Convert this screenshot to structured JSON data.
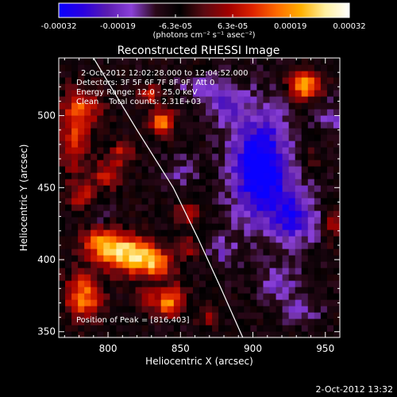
{
  "chart_data": {
    "type": "heatmap",
    "title": "Reconstructed RHESSI Image",
    "xlabel": "Heliocentric X (arcsec)",
    "ylabel": "Heliocentric Y (arcsec)",
    "xlim": [
      766,
      960
    ],
    "ylim": [
      346,
      540
    ],
    "xticks": [
      800,
      850,
      900,
      950
    ],
    "yticks": [
      350,
      400,
      450,
      500
    ],
    "colorbar": {
      "label": "(photons cm⁻² s⁻¹ asec⁻²)",
      "range": [
        -0.00032,
        0.00032
      ],
      "tick_labels": [
        "-0.00032",
        "-0.00019",
        "-6.3e-05",
        "6.3e-05",
        "0.00019",
        "0.00032"
      ],
      "colors": [
        "#0a00ff",
        "#2a00e0",
        "#5a1cb0",
        "#8a40d8",
        "#2a0818",
        "#000000",
        "#5a0a12",
        "#a00000",
        "#dd2200",
        "#ff6a00",
        "#ffb000",
        "#fff0a0",
        "#ffffff"
      ]
    },
    "info_lines": [
      "2-Oct-2012 12:02:28.000 to 12:04:52.000",
      "Detectors: 3F 5F 6F 7F 8F 9F, Att 0",
      "Energy Range: 12.0 - 25.0 keV",
      "Clean    Total counts: 2.31E+03"
    ],
    "peak_text": "Position of Peak = [816,403]",
    "peak": [
      816,
      403
    ],
    "limb_curve": [
      [
        790,
        540
      ],
      [
        820,
        490
      ],
      [
        845,
        450
      ],
      [
        862,
        415
      ],
      [
        878,
        380
      ],
      [
        893,
        346
      ]
    ],
    "sources": [
      {
        "x": 796,
        "y": 412,
        "sx": 10,
        "sy": 9,
        "amp": 0.00022
      },
      {
        "x": 815,
        "y": 404,
        "sx": 12,
        "sy": 9,
        "amp": 0.0003
      },
      {
        "x": 833,
        "y": 397,
        "sx": 9,
        "sy": 7,
        "amp": 0.00021
      },
      {
        "x": 783,
        "y": 375,
        "sx": 9,
        "sy": 11,
        "amp": 0.00024
      },
      {
        "x": 843,
        "y": 368,
        "sx": 6,
        "sy": 5,
        "amp": 0.00022
      },
      {
        "x": 830,
        "y": 373,
        "sx": 7,
        "sy": 6,
        "amp": 0.00013
      },
      {
        "x": 838,
        "y": 496,
        "sx": 6,
        "sy": 6,
        "amp": 0.00025
      },
      {
        "x": 828,
        "y": 515,
        "sx": 5,
        "sy": 5,
        "amp": 0.00016
      },
      {
        "x": 781,
        "y": 505,
        "sx": 10,
        "sy": 11,
        "amp": 0.00019
      },
      {
        "x": 777,
        "y": 478,
        "sx": 7,
        "sy": 12,
        "amp": 0.00016
      },
      {
        "x": 800,
        "y": 460,
        "sx": 7,
        "sy": 7,
        "amp": 0.00016
      },
      {
        "x": 810,
        "y": 475,
        "sx": 6,
        "sy": 6,
        "amp": 0.00013
      },
      {
        "x": 782,
        "y": 445,
        "sx": 8,
        "sy": 7,
        "amp": 0.00014
      },
      {
        "x": 855,
        "y": 432,
        "sx": 6,
        "sy": 5,
        "amp": 0.00013
      },
      {
        "x": 855,
        "y": 409,
        "sx": 5,
        "sy": 5,
        "amp": 0.00011
      },
      {
        "x": 847,
        "y": 378,
        "sx": 6,
        "sy": 5,
        "amp": 0.00012
      },
      {
        "x": 936,
        "y": 521,
        "sx": 8,
        "sy": 7,
        "amp": 0.00027
      },
      {
        "x": 957,
        "y": 425,
        "sx": 6,
        "sy": 9,
        "amp": 0.00013
      },
      {
        "x": 938,
        "y": 470,
        "sx": 5,
        "sy": 5,
        "amp": 9e-05
      },
      {
        "x": 870,
        "y": 360,
        "sx": 6,
        "sy": 5,
        "amp": 0.0001
      },
      {
        "x": 905,
        "y": 465,
        "sx": 14,
        "sy": 26,
        "amp": -0.0003
      },
      {
        "x": 928,
        "y": 430,
        "sx": 12,
        "sy": 14,
        "amp": -0.00017
      },
      {
        "x": 880,
        "y": 510,
        "sx": 10,
        "sy": 10,
        "amp": -0.00012
      },
      {
        "x": 918,
        "y": 382,
        "sx": 10,
        "sy": 10,
        "amp": -0.0001
      },
      {
        "x": 880,
        "y": 405,
        "sx": 7,
        "sy": 8,
        "amp": -9e-05
      },
      {
        "x": 935,
        "y": 365,
        "sx": 8,
        "sy": 7,
        "amp": -9e-05
      },
      {
        "x": 955,
        "y": 500,
        "sx": 7,
        "sy": 8,
        "amp": -9e-05
      },
      {
        "x": 795,
        "y": 430,
        "sx": 6,
        "sy": 6,
        "amp": -8e-05
      },
      {
        "x": 850,
        "y": 460,
        "sx": 8,
        "sy": 8,
        "amp": -8e-05
      },
      {
        "x": 860,
        "y": 520,
        "sx": 8,
        "sy": 6,
        "amp": -8e-05
      }
    ],
    "background_level": -7e-05,
    "noise_level": 4e-05
  },
  "footer_timestamp": "2-Oct-2012 13:32"
}
